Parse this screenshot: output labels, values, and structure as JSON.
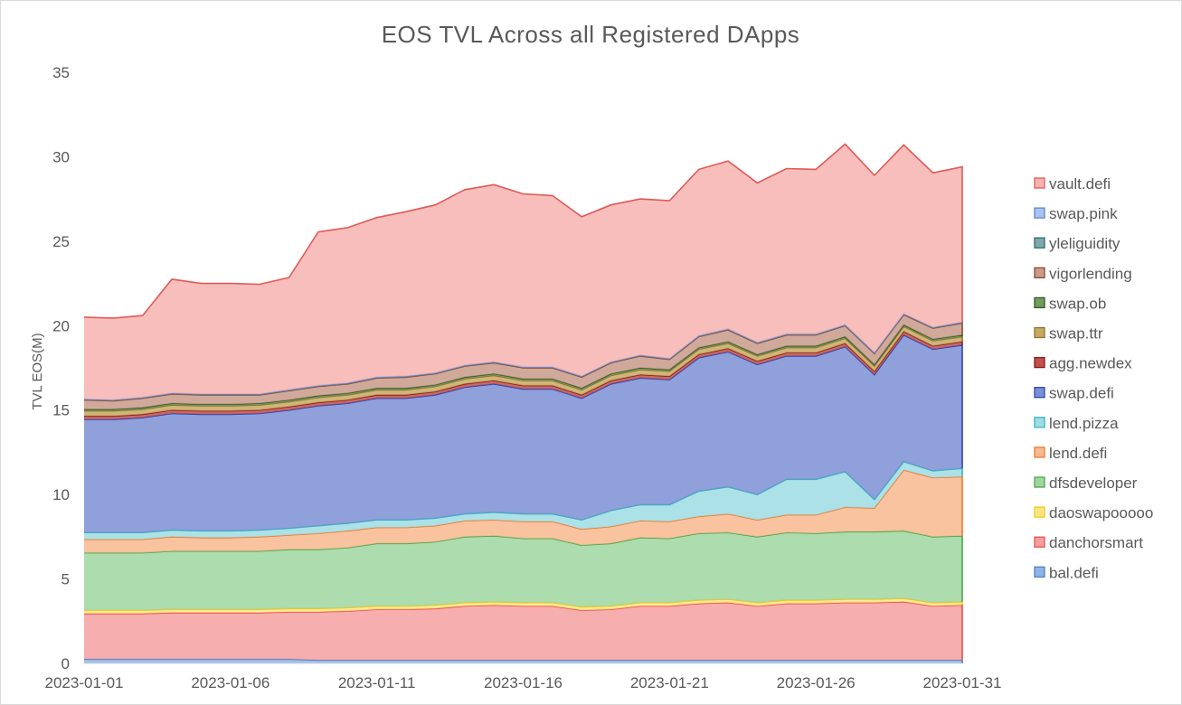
{
  "chart_data": {
    "type": "area",
    "stacked": true,
    "title": "EOS TVL Across all Registered DApps",
    "xlabel": "",
    "ylabel": "TVL EOS(M)",
    "ylim": [
      0,
      35
    ],
    "yticks": [
      0,
      5,
      10,
      15,
      20,
      25,
      30,
      35
    ],
    "xtick_labels": [
      "2023-01-01",
      "2023-01-06",
      "2023-01-11",
      "2023-01-16",
      "2023-01-21",
      "2023-01-26",
      "2023-01-31"
    ],
    "x": [
      "2023-01-01",
      "2023-01-02",
      "2023-01-03",
      "2023-01-04",
      "2023-01-05",
      "2023-01-06",
      "2023-01-07",
      "2023-01-08",
      "2023-01-09",
      "2023-01-10",
      "2023-01-11",
      "2023-01-12",
      "2023-01-13",
      "2023-01-14",
      "2023-01-15",
      "2023-01-16",
      "2023-01-17",
      "2023-01-18",
      "2023-01-19",
      "2023-01-20",
      "2023-01-21",
      "2023-01-22",
      "2023-01-23",
      "2023-01-24",
      "2023-01-25",
      "2023-01-26",
      "2023-01-27",
      "2023-01-28",
      "2023-01-29",
      "2023-01-30",
      "2023-01-31"
    ],
    "grid": false,
    "legend_position": "right",
    "series": [
      {
        "name": "bal.defi",
        "color": "#8fb4e8",
        "stroke": "#4f81c7",
        "values": [
          0.25,
          0.25,
          0.25,
          0.25,
          0.25,
          0.25,
          0.25,
          0.25,
          0.2,
          0.2,
          0.2,
          0.2,
          0.2,
          0.2,
          0.2,
          0.2,
          0.2,
          0.2,
          0.2,
          0.2,
          0.2,
          0.2,
          0.2,
          0.2,
          0.2,
          0.2,
          0.2,
          0.2,
          0.2,
          0.2,
          0.2
        ]
      },
      {
        "name": "danchorsmart",
        "color": "#f4a0a0",
        "stroke": "#e8504c",
        "values": [
          2.7,
          2.7,
          2.7,
          2.75,
          2.75,
          2.75,
          2.75,
          2.8,
          2.85,
          2.9,
          3.0,
          3.0,
          3.05,
          3.2,
          3.25,
          3.2,
          3.2,
          2.95,
          3.0,
          3.2,
          3.2,
          3.35,
          3.4,
          3.2,
          3.35,
          3.35,
          3.4,
          3.4,
          3.45,
          3.2,
          3.25
        ]
      },
      {
        "name": "daoswapooooo",
        "color": "#ffe680",
        "stroke": "#f5c518",
        "values": [
          0.2,
          0.2,
          0.2,
          0.2,
          0.2,
          0.2,
          0.2,
          0.2,
          0.2,
          0.2,
          0.2,
          0.2,
          0.2,
          0.2,
          0.2,
          0.2,
          0.2,
          0.2,
          0.2,
          0.2,
          0.2,
          0.2,
          0.2,
          0.2,
          0.2,
          0.2,
          0.2,
          0.2,
          0.2,
          0.2,
          0.2
        ]
      },
      {
        "name": "dfsdeveloper",
        "color": "#9fd6a0",
        "stroke": "#49a94b",
        "values": [
          3.4,
          3.4,
          3.4,
          3.45,
          3.45,
          3.45,
          3.45,
          3.5,
          3.5,
          3.55,
          3.7,
          3.7,
          3.75,
          3.9,
          3.9,
          3.8,
          3.8,
          3.65,
          3.7,
          3.85,
          3.8,
          3.95,
          3.95,
          3.9,
          4.0,
          3.95,
          4.0,
          4.0,
          4.0,
          3.9,
          3.9
        ]
      },
      {
        "name": "lend.defi",
        "color": "#f9b98f",
        "stroke": "#ef7a2a",
        "values": [
          0.8,
          0.8,
          0.8,
          0.85,
          0.8,
          0.8,
          0.85,
          0.85,
          0.95,
          1.0,
          0.95,
          0.95,
          0.95,
          0.95,
          0.95,
          1.0,
          1.0,
          0.95,
          1.0,
          1.0,
          1.0,
          1.0,
          1.1,
          1.0,
          1.05,
          1.1,
          1.45,
          1.4,
          3.6,
          3.5,
          3.5
        ]
      },
      {
        "name": "lend.pizza",
        "color": "#9edde3",
        "stroke": "#39b2c0",
        "values": [
          0.4,
          0.4,
          0.4,
          0.4,
          0.4,
          0.4,
          0.4,
          0.4,
          0.45,
          0.45,
          0.45,
          0.45,
          0.45,
          0.4,
          0.45,
          0.45,
          0.45,
          0.55,
          0.95,
          0.95,
          1.0,
          1.5,
          1.6,
          1.5,
          2.1,
          2.1,
          2.1,
          0.5,
          0.5,
          0.4,
          0.5
        ]
      },
      {
        "name": "swap.defi",
        "color": "#7b8fd4",
        "stroke": "#2a45b8",
        "values": [
          6.7,
          6.7,
          6.8,
          6.9,
          6.9,
          6.9,
          6.9,
          7.0,
          7.1,
          7.1,
          7.2,
          7.2,
          7.3,
          7.5,
          7.6,
          7.4,
          7.4,
          7.2,
          7.5,
          7.5,
          7.4,
          7.9,
          8.0,
          7.7,
          7.3,
          7.3,
          7.4,
          7.4,
          7.5,
          7.2,
          7.3
        ]
      },
      {
        "name": "agg.newdex",
        "color": "#c0504d",
        "stroke": "#8b1a1a",
        "values": [
          0.2,
          0.2,
          0.2,
          0.2,
          0.2,
          0.2,
          0.2,
          0.2,
          0.2,
          0.2,
          0.2,
          0.2,
          0.2,
          0.2,
          0.2,
          0.2,
          0.2,
          0.2,
          0.2,
          0.2,
          0.2,
          0.2,
          0.2,
          0.2,
          0.2,
          0.2,
          0.2,
          0.2,
          0.2,
          0.2,
          0.2
        ]
      },
      {
        "name": "swap.ttr",
        "color": "#c8a860",
        "stroke": "#8d7330",
        "values": [
          0.3,
          0.3,
          0.3,
          0.3,
          0.3,
          0.3,
          0.3,
          0.3,
          0.3,
          0.3,
          0.3,
          0.3,
          0.3,
          0.3,
          0.3,
          0.3,
          0.3,
          0.3,
          0.3,
          0.3,
          0.3,
          0.3,
          0.3,
          0.3,
          0.3,
          0.3,
          0.3,
          0.3,
          0.3,
          0.3,
          0.3
        ]
      },
      {
        "name": "swap.ob",
        "color": "#6e9e5a",
        "stroke": "#33572a",
        "values": [
          0.1,
          0.1,
          0.1,
          0.1,
          0.1,
          0.1,
          0.1,
          0.1,
          0.1,
          0.1,
          0.1,
          0.1,
          0.1,
          0.1,
          0.1,
          0.1,
          0.1,
          0.1,
          0.1,
          0.1,
          0.1,
          0.1,
          0.1,
          0.1,
          0.1,
          0.1,
          0.1,
          0.1,
          0.1,
          0.1,
          0.1
        ]
      },
      {
        "name": "vigorlending",
        "color": "#c99a8a",
        "stroke": "#8a4a2a",
        "values": [
          0.55,
          0.5,
          0.55,
          0.55,
          0.55,
          0.55,
          0.5,
          0.55,
          0.55,
          0.55,
          0.6,
          0.65,
          0.65,
          0.65,
          0.65,
          0.65,
          0.65,
          0.65,
          0.65,
          0.7,
          0.6,
          0.65,
          0.7,
          0.65,
          0.65,
          0.65,
          0.65,
          0.65,
          0.6,
          0.65,
          0.7
        ]
      },
      {
        "name": "yleliguidity",
        "color": "#7fa9a9",
        "stroke": "#2d6b6b",
        "values": [
          0.05,
          0.05,
          0.05,
          0.05,
          0.05,
          0.05,
          0.05,
          0.05,
          0.05,
          0.05,
          0.05,
          0.05,
          0.05,
          0.05,
          0.05,
          0.05,
          0.05,
          0.05,
          0.05,
          0.05,
          0.05,
          0.05,
          0.05,
          0.05,
          0.05,
          0.05,
          0.05,
          0.05,
          0.05,
          0.05,
          0.05
        ]
      },
      {
        "name": "swap.pink",
        "color": "#a9c4ef",
        "stroke": "#5b86d0",
        "values": [
          0.0,
          0.0,
          0.0,
          0.0,
          0.0,
          0.0,
          0.0,
          0.0,
          0.0,
          0.0,
          0.0,
          0.0,
          0.0,
          0.0,
          0.0,
          0.0,
          0.0,
          0.0,
          0.0,
          0.0,
          0.0,
          0.0,
          0.0,
          0.0,
          0.0,
          0.0,
          0.0,
          0.0,
          0.0,
          0.0,
          0.0
        ]
      },
      {
        "name": "vault.defi",
        "color": "#f7b3b0",
        "stroke": "#e05a55",
        "values": [
          4.85,
          4.85,
          4.85,
          6.75,
          6.55,
          6.55,
          6.5,
          6.65,
          9.1,
          9.2,
          9.45,
          9.75,
          9.95,
          10.4,
          10.5,
          10.25,
          10.15,
          9.45,
          9.3,
          9.25,
          9.35,
          9.85,
          9.95,
          9.45,
          9.8,
          9.75,
          10.7,
          10.5,
          10.0,
          9.15,
          9.2
        ]
      }
    ]
  }
}
